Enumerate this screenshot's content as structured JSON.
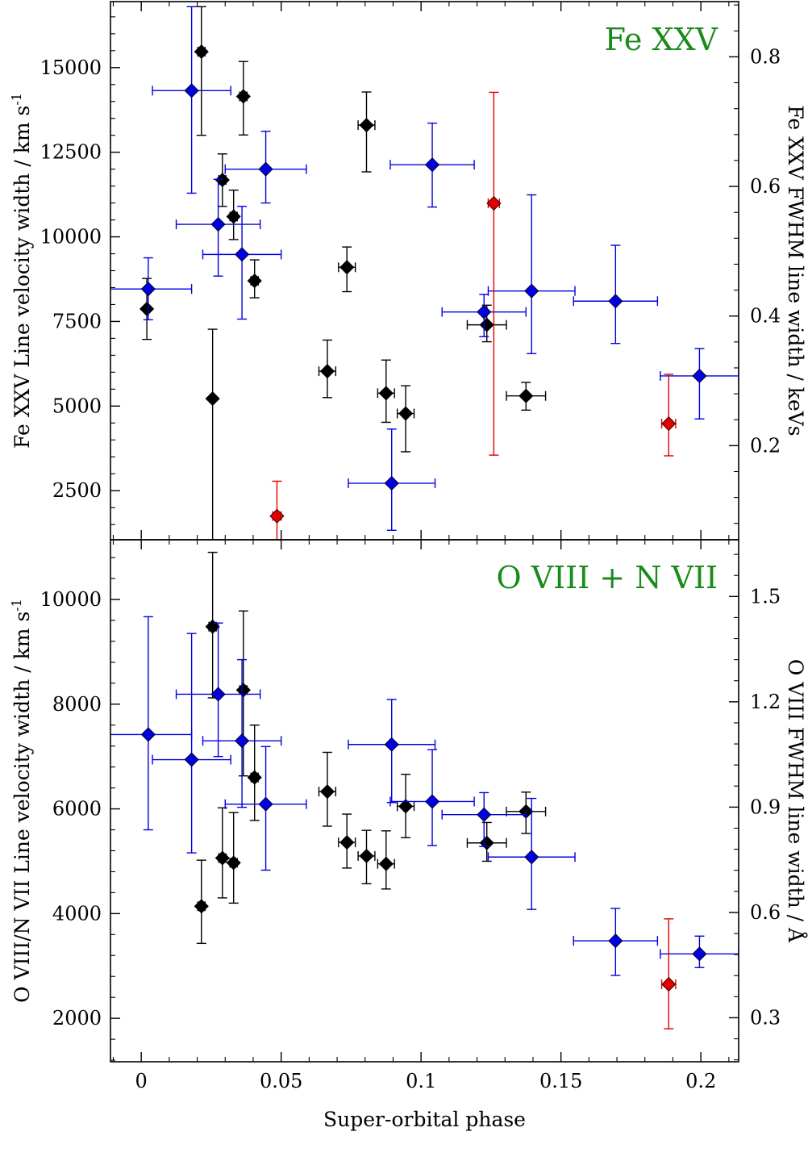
{
  "colors": {
    "black_series": "#000000",
    "blue_series": "#0000e0",
    "red_series": "#e00000",
    "panel_label": "#1a8a1a",
    "frame": "#000000"
  },
  "chart_data": [
    {
      "type": "scatter",
      "panel": "top",
      "title": "Fe XXV",
      "xlabel": "Super-orbital phase",
      "ylabel": "Fe XXV Line velocity width / km s",
      "ylabel_superscript": "-1",
      "ylabel_right": "Fe XXV FWHM line width / keVs",
      "xlim": [
        -0.011,
        0.2135
      ],
      "ylim": [
        1050,
        16950
      ],
      "ylim_right_keV": [
        0.0548,
        0.8852
      ],
      "xticks": [
        0,
        0.05,
        0.1,
        0.15,
        0.2
      ],
      "xtick_labels": [
        "0",
        "0.05",
        "0.1",
        "0.15",
        "0.2"
      ],
      "yticks": [
        2500,
        5000,
        7500,
        10000,
        12500,
        15000
      ],
      "ytick_labels": [
        "2500",
        "5000",
        "7500",
        "10000",
        "12500",
        "15000"
      ],
      "yticks_right": [
        0.2,
        0.4,
        0.6,
        0.8
      ],
      "ytick_labels_right": [
        "0.2",
        "0.4",
        "0.6",
        "0.8"
      ],
      "series": [
        {
          "name": "black",
          "color": "#000000",
          "points": [
            {
              "x": 0.002,
              "y": 7870,
              "xerr": 0,
              "ylo": 6970,
              "yhi": 8770
            },
            {
              "x": 0.0215,
              "y": 15470,
              "xerr": 0.0013,
              "ylo": 13000,
              "yhi": 16800
            },
            {
              "x": 0.0255,
              "y": 5220,
              "xerr": 0,
              "ylo": 1050,
              "yhi": 7270
            },
            {
              "x": 0.029,
              "y": 11680,
              "xerr": 0.0013,
              "ylo": 10900,
              "yhi": 12450
            },
            {
              "x": 0.033,
              "y": 10600,
              "xerr": 0.0013,
              "ylo": 9920,
              "yhi": 11380
            },
            {
              "x": 0.0365,
              "y": 14150,
              "xerr": 0.0013,
              "ylo": 13010,
              "yhi": 15180
            },
            {
              "x": 0.0405,
              "y": 8700,
              "xerr": 0.0013,
              "ylo": 8200,
              "yhi": 9320
            },
            {
              "x": 0.0665,
              "y": 6030,
              "xerr": 0.003,
              "ylo": 5250,
              "yhi": 6950
            },
            {
              "x": 0.0735,
              "y": 9100,
              "xerr": 0.003,
              "ylo": 8380,
              "yhi": 9700
            },
            {
              "x": 0.0805,
              "y": 13300,
              "xerr": 0.003,
              "ylo": 11920,
              "yhi": 14280
            },
            {
              "x": 0.0875,
              "y": 5380,
              "xerr": 0.003,
              "ylo": 4520,
              "yhi": 6360
            },
            {
              "x": 0.0945,
              "y": 4780,
              "xerr": 0.003,
              "ylo": 3650,
              "yhi": 5600
            },
            {
              "x": 0.1235,
              "y": 7400,
              "xerr": 0.007,
              "ylo": 6900,
              "yhi": 7980
            },
            {
              "x": 0.1375,
              "y": 5300,
              "xerr": 0.007,
              "ylo": 4880,
              "yhi": 5700
            }
          ]
        },
        {
          "name": "blue",
          "color": "#0000e0",
          "points": [
            {
              "x": 0.0025,
              "y": 8460,
              "xerr": 0.0155,
              "ylo": 7550,
              "yhi": 9380
            },
            {
              "x": 0.018,
              "y": 14320,
              "xerr": 0.014,
              "ylo": 11290,
              "yhi": 16800
            },
            {
              "x": 0.0275,
              "y": 10370,
              "xerr": 0.015,
              "ylo": 8840,
              "yhi": 11700
            },
            {
              "x": 0.036,
              "y": 9480,
              "xerr": 0.014,
              "ylo": 7570,
              "yhi": 10900
            },
            {
              "x": 0.0445,
              "y": 12000,
              "xerr": 0.0145,
              "ylo": 11000,
              "yhi": 13120
            },
            {
              "x": 0.0895,
              "y": 2720,
              "xerr": 0.0155,
              "ylo": 1330,
              "yhi": 4320
            },
            {
              "x": 0.104,
              "y": 12130,
              "xerr": 0.015,
              "ylo": 10880,
              "yhi": 13360
            },
            {
              "x": 0.1225,
              "y": 7780,
              "xerr": 0.015,
              "ylo": 7050,
              "yhi": 8300
            },
            {
              "x": 0.1395,
              "y": 8400,
              "xerr": 0.0155,
              "ylo": 6550,
              "yhi": 11240
            },
            {
              "x": 0.1695,
              "y": 8100,
              "xerr": 0.015,
              "ylo": 6850,
              "yhi": 9750
            },
            {
              "x": 0.1995,
              "y": 5890,
              "xerr": 0.014,
              "ylo": 4620,
              "yhi": 6700
            }
          ]
        },
        {
          "name": "red",
          "color": "#e00000",
          "points": [
            {
              "x": 0.0485,
              "y": 1750,
              "xerr": 0.0015,
              "ylo": 1050,
              "yhi": 2780
            },
            {
              "x": 0.126,
              "y": 10990,
              "xerr": 0.002,
              "ylo": 3550,
              "yhi": 14270
            },
            {
              "x": 0.1885,
              "y": 4480,
              "xerr": 0.0025,
              "ylo": 3530,
              "yhi": 5940
            }
          ]
        }
      ]
    },
    {
      "type": "scatter",
      "panel": "bottom",
      "title": "O VIII + N VII",
      "xlabel": "Super-orbital phase",
      "ylabel": "O VIII/N VII Line velocity width / km s",
      "ylabel_superscript": "-1",
      "ylabel_right": "O VIII FWHM line width / Å",
      "xlim": [
        -0.011,
        0.2135
      ],
      "ylim": [
        1170,
        11140
      ],
      "ylim_right_A": [
        0.1746,
        1.6616
      ],
      "xticks": [
        0,
        0.05,
        0.1,
        0.15,
        0.2
      ],
      "xtick_labels": [
        "0",
        "0.05",
        "0.1",
        "0.15",
        "0.2"
      ],
      "yticks": [
        2000,
        4000,
        6000,
        8000,
        10000
      ],
      "ytick_labels": [
        "2000",
        "4000",
        "6000",
        "8000",
        "10000"
      ],
      "yticks_right": [
        0.3,
        0.6,
        0.9,
        1.2,
        1.5
      ],
      "ytick_labels_right": [
        "0.3",
        "0.6",
        "0.9",
        "1.2",
        "1.5"
      ],
      "series": [
        {
          "name": "black",
          "color": "#000000",
          "points": [
            {
              "x": 0.0215,
              "y": 4140,
              "xerr": 0.0013,
              "ylo": 3430,
              "yhi": 5020
            },
            {
              "x": 0.0255,
              "y": 9480,
              "xerr": 0.0013,
              "ylo": 8120,
              "yhi": 10900
            },
            {
              "x": 0.029,
              "y": 5060,
              "xerr": 0.0013,
              "ylo": 4300,
              "yhi": 6020
            },
            {
              "x": 0.033,
              "y": 4970,
              "xerr": 0.0013,
              "ylo": 4200,
              "yhi": 5930
            },
            {
              "x": 0.0365,
              "y": 8270,
              "xerr": 0.0013,
              "ylo": 6630,
              "yhi": 9780
            },
            {
              "x": 0.0405,
              "y": 6600,
              "xerr": 0.0013,
              "ylo": 5780,
              "yhi": 7600
            },
            {
              "x": 0.0665,
              "y": 6330,
              "xerr": 0.003,
              "ylo": 5670,
              "yhi": 7080
            },
            {
              "x": 0.0735,
              "y": 5360,
              "xerr": 0.003,
              "ylo": 4870,
              "yhi": 5900
            },
            {
              "x": 0.0805,
              "y": 5100,
              "xerr": 0.003,
              "ylo": 4570,
              "yhi": 5590
            },
            {
              "x": 0.0875,
              "y": 4950,
              "xerr": 0.003,
              "ylo": 4470,
              "yhi": 5580
            },
            {
              "x": 0.0945,
              "y": 6050,
              "xerr": 0.003,
              "ylo": 5450,
              "yhi": 6660
            },
            {
              "x": 0.1235,
              "y": 5350,
              "xerr": 0.007,
              "ylo": 5000,
              "yhi": 5740
            },
            {
              "x": 0.1375,
              "y": 5950,
              "xerr": 0.007,
              "ylo": 5530,
              "yhi": 6320
            }
          ]
        },
        {
          "name": "blue",
          "color": "#0000e0",
          "points": [
            {
              "x": 0.0025,
              "y": 7420,
              "xerr": 0.0155,
              "ylo": 5600,
              "yhi": 9670
            },
            {
              "x": 0.018,
              "y": 6940,
              "xerr": 0.014,
              "ylo": 5160,
              "yhi": 9350
            },
            {
              "x": 0.0275,
              "y": 8190,
              "xerr": 0.015,
              "ylo": 7000,
              "yhi": 9550
            },
            {
              "x": 0.036,
              "y": 7300,
              "xerr": 0.014,
              "ylo": 6030,
              "yhi": 8850
            },
            {
              "x": 0.0445,
              "y": 6090,
              "xerr": 0.0145,
              "ylo": 4830,
              "yhi": 7190
            },
            {
              "x": 0.0895,
              "y": 7230,
              "xerr": 0.0155,
              "ylo": 6120,
              "yhi": 8090
            },
            {
              "x": 0.104,
              "y": 6140,
              "xerr": 0.015,
              "ylo": 5300,
              "yhi": 7130
            },
            {
              "x": 0.1225,
              "y": 5890,
              "xerr": 0.015,
              "ylo": 5280,
              "yhi": 6310
            },
            {
              "x": 0.1395,
              "y": 5080,
              "xerr": 0.0155,
              "ylo": 4080,
              "yhi": 6200
            },
            {
              "x": 0.1695,
              "y": 3480,
              "xerr": 0.015,
              "ylo": 2820,
              "yhi": 4100
            },
            {
              "x": 0.1995,
              "y": 3230,
              "xerr": 0.014,
              "ylo": 2970,
              "yhi": 3570
            }
          ]
        },
        {
          "name": "red",
          "color": "#e00000",
          "points": [
            {
              "x": 0.1885,
              "y": 2650,
              "xerr": 0.0025,
              "ylo": 1800,
              "yhi": 3900
            }
          ]
        }
      ]
    }
  ]
}
